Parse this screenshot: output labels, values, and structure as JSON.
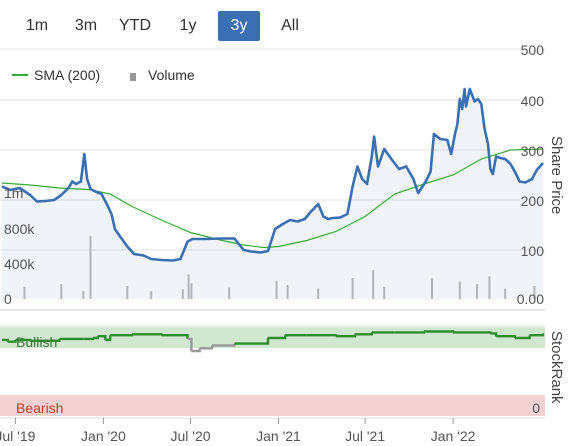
{
  "range_tabs": [
    {
      "label": "1m",
      "active": false
    },
    {
      "label": "3m",
      "active": false
    },
    {
      "label": "YTD",
      "active": false
    },
    {
      "label": "1y",
      "active": false
    },
    {
      "label": "3y",
      "active": true
    },
    {
      "label": "All",
      "active": false
    }
  ],
  "colors": {
    "price": "#3b6fb3",
    "sma": "#3aaa35",
    "volume": "#bbbbbb",
    "rank_good": "#2e8b2e",
    "rank_bad": "#999999",
    "bullish_band": "#cfe8cf",
    "bearish_band": "#f4d2d2",
    "active_tab": "#3b6fb3"
  },
  "chart_data": {
    "type": "line",
    "legend": [
      "SMA (200)",
      "Volume"
    ],
    "x_ticks": [
      "Jul '19",
      "Jan '20",
      "Jul '20",
      "Jan '21",
      "Jul '21",
      "Jan '22"
    ],
    "x_tick_dates": [
      "2019-07-01",
      "2020-01-01",
      "2020-07-01",
      "2021-01-01",
      "2021-07-01",
      "2022-01-01"
    ],
    "x_range": [
      "2019-06-03",
      "2022-07-08"
    ],
    "price_axis": {
      "label": "Share Price",
      "ticks": [
        "500",
        "400",
        "300",
        "200",
        "100",
        "0.00"
      ],
      "range": [
        0,
        500
      ]
    },
    "volume_axis": {
      "ticks": [
        "1m",
        "800k",
        "400k",
        "0"
      ],
      "range": [
        0,
        1200000
      ]
    },
    "rank_axis": {
      "label": "StockRank",
      "band_high": "Bullish",
      "band_low": "Bearish",
      "tick_low": "0",
      "range": [
        0,
        100
      ]
    },
    "series": [
      {
        "name": "Price",
        "points": [
          [
            "2019-06-03",
            225
          ],
          [
            "2019-06-20",
            218
          ],
          [
            "2019-07-10",
            222
          ],
          [
            "2019-08-01",
            208
          ],
          [
            "2019-08-15",
            195
          ],
          [
            "2019-09-01",
            196
          ],
          [
            "2019-09-20",
            198
          ],
          [
            "2019-10-05",
            208
          ],
          [
            "2019-10-20",
            222
          ],
          [
            "2019-10-28",
            235
          ],
          [
            "2019-11-05",
            230
          ],
          [
            "2019-11-15",
            235
          ],
          [
            "2019-11-22",
            290
          ],
          [
            "2019-11-28",
            240
          ],
          [
            "2019-12-05",
            220
          ],
          [
            "2019-12-15",
            215
          ],
          [
            "2019-12-28",
            210
          ],
          [
            "2020-01-08",
            190
          ],
          [
            "2020-01-18",
            170
          ],
          [
            "2020-01-25",
            140
          ],
          [
            "2020-02-05",
            125
          ],
          [
            "2020-02-20",
            105
          ],
          [
            "2020-03-05",
            90
          ],
          [
            "2020-03-25",
            87
          ],
          [
            "2020-04-10",
            80
          ],
          [
            "2020-05-01",
            78
          ],
          [
            "2020-05-25",
            77
          ],
          [
            "2020-06-10",
            80
          ],
          [
            "2020-06-25",
            115
          ],
          [
            "2020-07-05",
            120
          ],
          [
            "2020-08-01",
            120
          ],
          [
            "2020-09-01",
            121
          ],
          [
            "2020-10-01",
            121
          ],
          [
            "2020-10-20",
            98
          ],
          [
            "2020-11-05",
            95
          ],
          [
            "2020-11-25",
            93
          ],
          [
            "2020-12-10",
            96
          ],
          [
            "2020-12-25",
            140
          ],
          [
            "2021-01-10",
            150
          ],
          [
            "2021-01-25",
            158
          ],
          [
            "2021-02-10",
            155
          ],
          [
            "2021-02-25",
            160
          ],
          [
            "2021-03-10",
            175
          ],
          [
            "2021-03-25",
            190
          ],
          [
            "2021-04-05",
            165
          ],
          [
            "2021-04-15",
            160
          ],
          [
            "2021-04-25",
            162
          ],
          [
            "2021-05-10",
            163
          ],
          [
            "2021-05-25",
            170
          ],
          [
            "2021-06-05",
            225
          ],
          [
            "2021-06-15",
            265
          ],
          [
            "2021-06-25",
            240
          ],
          [
            "2021-07-05",
            230
          ],
          [
            "2021-07-15",
            285
          ],
          [
            "2021-07-20",
            325
          ],
          [
            "2021-07-28",
            265
          ],
          [
            "2021-08-10",
            300
          ],
          [
            "2021-08-25",
            280
          ],
          [
            "2021-09-10",
            260
          ],
          [
            "2021-09-25",
            265
          ],
          [
            "2021-10-10",
            240
          ],
          [
            "2021-10-20",
            212
          ],
          [
            "2021-11-05",
            235
          ],
          [
            "2021-11-15",
            255
          ],
          [
            "2021-11-22",
            330
          ],
          [
            "2021-12-05",
            320
          ],
          [
            "2021-12-20",
            318
          ],
          [
            "2021-12-28",
            290
          ],
          [
            "2022-01-05",
            330
          ],
          [
            "2022-01-10",
            350
          ],
          [
            "2022-01-15",
            400
          ],
          [
            "2022-01-20",
            380
          ],
          [
            "2022-01-25",
            420
          ],
          [
            "2022-01-28",
            385
          ],
          [
            "2022-02-05",
            420
          ],
          [
            "2022-02-15",
            395
          ],
          [
            "2022-02-22",
            400
          ],
          [
            "2022-03-01",
            390
          ],
          [
            "2022-03-08",
            340
          ],
          [
            "2022-03-15",
            310
          ],
          [
            "2022-03-20",
            260
          ],
          [
            "2022-03-25",
            250
          ],
          [
            "2022-04-01",
            285
          ],
          [
            "2022-04-10",
            282
          ],
          [
            "2022-04-20",
            280
          ],
          [
            "2022-05-01",
            270
          ],
          [
            "2022-05-10",
            255
          ],
          [
            "2022-05-20",
            235
          ],
          [
            "2022-06-01",
            233
          ],
          [
            "2022-06-15",
            240
          ],
          [
            "2022-06-25",
            258
          ],
          [
            "2022-07-08",
            272
          ]
        ]
      },
      {
        "name": "SMA (200)",
        "points": [
          [
            "2019-06-03",
            232
          ],
          [
            "2019-08-01",
            228
          ],
          [
            "2019-10-01",
            222
          ],
          [
            "2019-12-01",
            219
          ],
          [
            "2020-01-15",
            210
          ],
          [
            "2020-03-01",
            185
          ],
          [
            "2020-05-01",
            158
          ],
          [
            "2020-07-01",
            133
          ],
          [
            "2020-09-01",
            118
          ],
          [
            "2020-10-20",
            108
          ],
          [
            "2020-12-01",
            103
          ],
          [
            "2021-01-01",
            105
          ],
          [
            "2021-03-01",
            117
          ],
          [
            "2021-05-01",
            135
          ],
          [
            "2021-07-01",
            165
          ],
          [
            "2021-09-01",
            210
          ],
          [
            "2021-11-01",
            230
          ],
          [
            "2022-01-01",
            248
          ],
          [
            "2022-03-01",
            280
          ],
          [
            "2022-05-01",
            298
          ],
          [
            "2022-07-08",
            300
          ]
        ]
      },
      {
        "name": "StockRank",
        "points": [
          [
            "2019-06-03",
            84
          ],
          [
            "2019-06-15",
            82
          ],
          [
            "2019-07-01",
            84
          ],
          [
            "2019-08-01",
            83
          ],
          [
            "2019-10-01",
            85
          ],
          [
            "2019-11-20",
            85
          ],
          [
            "2019-12-10",
            86
          ],
          [
            "2019-12-20",
            88
          ],
          [
            "2020-01-05",
            84
          ],
          [
            "2020-01-15",
            89
          ],
          [
            "2020-03-01",
            90
          ],
          [
            "2020-05-01",
            89
          ],
          [
            "2020-06-25",
            85
          ],
          [
            "2020-07-03",
            72
          ],
          [
            "2020-07-20",
            75
          ],
          [
            "2020-08-15",
            78
          ],
          [
            "2020-10-01",
            80
          ],
          [
            "2020-11-15",
            80
          ],
          [
            "2020-12-10",
            86
          ],
          [
            "2021-01-15",
            89
          ],
          [
            "2021-03-01",
            89
          ],
          [
            "2021-05-01",
            88
          ],
          [
            "2021-06-10",
            90
          ],
          [
            "2021-07-15",
            92
          ],
          [
            "2021-09-01",
            92
          ],
          [
            "2021-11-01",
            93
          ],
          [
            "2022-01-01",
            92
          ],
          [
            "2022-03-20",
            91
          ],
          [
            "2022-04-01",
            88
          ],
          [
            "2022-05-10",
            86
          ],
          [
            "2022-06-10",
            89
          ],
          [
            "2022-07-08",
            91
          ]
        ]
      }
    ],
    "volume_spikes": [
      [
        "2019-07-20",
        140000
      ],
      [
        "2019-10-05",
        170000
      ],
      [
        "2019-11-20",
        90000
      ],
      [
        "2019-12-05",
        720000
      ],
      [
        "2020-02-20",
        150000
      ],
      [
        "2020-04-10",
        90000
      ],
      [
        "2020-06-15",
        110000
      ],
      [
        "2020-06-27",
        280000
      ],
      [
        "2020-07-03",
        180000
      ],
      [
        "2020-09-20",
        130000
      ],
      [
        "2020-12-28",
        210000
      ],
      [
        "2021-01-20",
        160000
      ],
      [
        "2021-03-25",
        120000
      ],
      [
        "2021-06-05",
        240000
      ],
      [
        "2021-07-18",
        330000
      ],
      [
        "2021-08-10",
        140000
      ],
      [
        "2021-11-18",
        240000
      ],
      [
        "2022-01-15",
        200000
      ],
      [
        "2022-02-20",
        170000
      ],
      [
        "2022-03-18",
        260000
      ],
      [
        "2022-04-20",
        120000
      ],
      [
        "2022-06-20",
        150000
      ]
    ]
  }
}
